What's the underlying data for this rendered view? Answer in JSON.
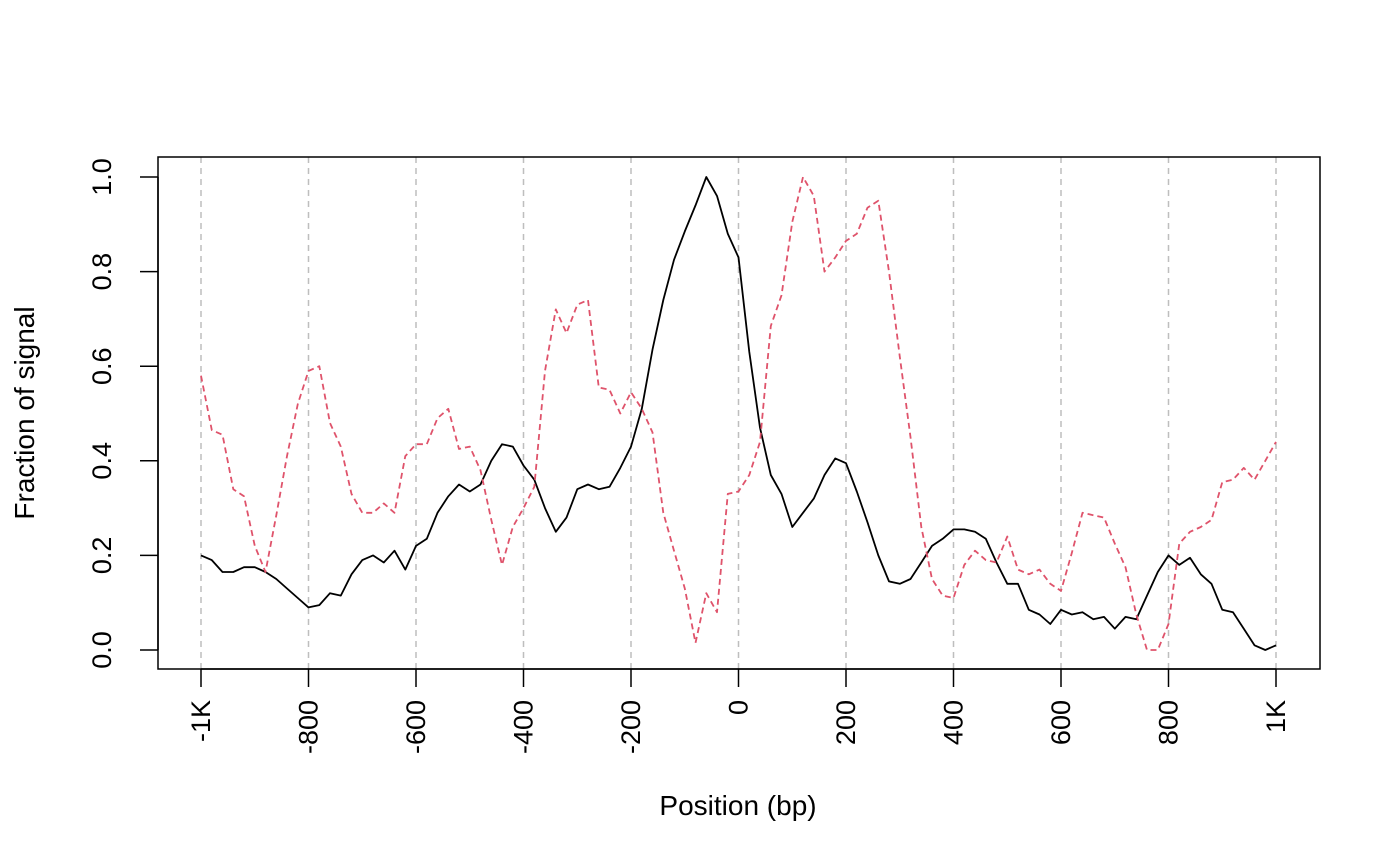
{
  "chart_data": {
    "type": "line",
    "xlabel": "Position (bp)",
    "ylabel": "Fraction of signal",
    "xlim": [
      -1000,
      1000
    ],
    "ylim": [
      0,
      1
    ],
    "x_ticks": [
      -1000,
      -800,
      -600,
      -400,
      -200,
      0,
      200,
      400,
      600,
      800,
      1000
    ],
    "x_tick_labels": [
      "-1K",
      "-800",
      "-600",
      "-400",
      "-200",
      "0",
      "200",
      "400",
      "600",
      "800",
      "1K"
    ],
    "y_ticks": [
      0,
      0.2,
      0.4,
      0.6,
      0.8,
      1
    ],
    "y_tick_labels": [
      "0.0",
      "0.2",
      "0.4",
      "0.6",
      "0.8",
      "1.0"
    ],
    "grid": "vertical dashed at x ticks",
    "legend": "none",
    "colors": {
      "grid": "#bebebe"
    },
    "series": [
      {
        "color": "#000000",
        "dash": "solid",
        "x": [
          -1000,
          -980,
          -960,
          -940,
          -920,
          -900,
          -880,
          -860,
          -840,
          -820,
          -800,
          -780,
          -760,
          -740,
          -720,
          -700,
          -680,
          -660,
          -640,
          -620,
          -600,
          -580,
          -560,
          -540,
          -520,
          -500,
          -480,
          -460,
          -440,
          -420,
          -400,
          -380,
          -360,
          -340,
          -320,
          -300,
          -280,
          -260,
          -240,
          -220,
          -200,
          -180,
          -160,
          -140,
          -120,
          -100,
          -80,
          -60,
          -40,
          -20,
          0,
          20,
          40,
          60,
          80,
          100,
          120,
          140,
          160,
          180,
          200,
          220,
          240,
          260,
          280,
          300,
          320,
          340,
          360,
          380,
          400,
          420,
          440,
          460,
          480,
          500,
          520,
          540,
          560,
          580,
          600,
          620,
          640,
          660,
          680,
          700,
          720,
          740,
          760,
          780,
          800,
          820,
          840,
          860,
          880,
          900,
          920,
          940,
          960,
          980,
          1000
        ],
        "y": [
          0.2,
          0.19,
          0.165,
          0.165,
          0.175,
          0.175,
          0.165,
          0.15,
          0.13,
          0.11,
          0.09,
          0.095,
          0.12,
          0.115,
          0.16,
          0.19,
          0.2,
          0.185,
          0.21,
          0.17,
          0.22,
          0.235,
          0.29,
          0.325,
          0.35,
          0.335,
          0.35,
          0.4,
          0.435,
          0.43,
          0.39,
          0.36,
          0.3,
          0.25,
          0.28,
          0.34,
          0.35,
          0.34,
          0.345,
          0.385,
          0.43,
          0.51,
          0.635,
          0.74,
          0.825,
          0.885,
          0.94,
          1.0,
          0.96,
          0.88,
          0.83,
          0.63,
          0.47,
          0.37,
          0.33,
          0.26,
          0.29,
          0.32,
          0.37,
          0.405,
          0.395,
          0.335,
          0.27,
          0.2,
          0.145,
          0.14,
          0.15,
          0.185,
          0.22,
          0.235,
          0.255,
          0.255,
          0.25,
          0.235,
          0.185,
          0.14,
          0.14,
          0.085,
          0.075,
          0.055,
          0.085,
          0.075,
          0.08,
          0.065,
          0.07,
          0.045,
          0.07,
          0.065,
          0.115,
          0.165,
          0.2,
          0.18,
          0.195,
          0.16,
          0.14,
          0.085,
          0.08,
          0.045,
          0.01,
          0.0,
          0.01
        ]
      },
      {
        "color": "#df536b",
        "dash": "dashed",
        "x": [
          -1000,
          -980,
          -960,
          -940,
          -920,
          -900,
          -880,
          -860,
          -840,
          -820,
          -800,
          -780,
          -760,
          -740,
          -720,
          -700,
          -680,
          -660,
          -640,
          -620,
          -600,
          -580,
          -560,
          -540,
          -520,
          -500,
          -480,
          -460,
          -440,
          -420,
          -400,
          -380,
          -360,
          -340,
          -320,
          -300,
          -280,
          -260,
          -240,
          -220,
          -200,
          -180,
          -160,
          -140,
          -120,
          -100,
          -80,
          -60,
          -40,
          -20,
          0,
          20,
          40,
          60,
          80,
          100,
          120,
          140,
          160,
          180,
          200,
          220,
          240,
          260,
          280,
          300,
          320,
          340,
          360,
          380,
          400,
          420,
          440,
          460,
          480,
          500,
          520,
          540,
          560,
          580,
          600,
          620,
          640,
          660,
          680,
          700,
          720,
          740,
          760,
          780,
          800,
          820,
          840,
          860,
          880,
          900,
          920,
          940,
          960,
          980,
          1000
        ],
        "y": [
          0.58,
          0.465,
          0.455,
          0.34,
          0.325,
          0.22,
          0.165,
          0.285,
          0.41,
          0.52,
          0.59,
          0.6,
          0.48,
          0.43,
          0.33,
          0.29,
          0.29,
          0.31,
          0.29,
          0.41,
          0.435,
          0.435,
          0.49,
          0.51,
          0.425,
          0.43,
          0.38,
          0.275,
          0.18,
          0.26,
          0.3,
          0.345,
          0.59,
          0.72,
          0.67,
          0.73,
          0.74,
          0.555,
          0.55,
          0.5,
          0.545,
          0.51,
          0.46,
          0.29,
          0.21,
          0.13,
          0.015,
          0.12,
          0.08,
          0.33,
          0.335,
          0.37,
          0.44,
          0.685,
          0.75,
          0.905,
          1.0,
          0.96,
          0.8,
          0.83,
          0.865,
          0.88,
          0.935,
          0.95,
          0.8,
          0.62,
          0.45,
          0.26,
          0.15,
          0.115,
          0.11,
          0.18,
          0.21,
          0.19,
          0.185,
          0.24,
          0.17,
          0.16,
          0.17,
          0.14,
          0.125,
          0.205,
          0.29,
          0.285,
          0.28,
          0.225,
          0.175,
          0.075,
          0.0,
          0.0,
          0.055,
          0.225,
          0.25,
          0.26,
          0.275,
          0.355,
          0.36,
          0.385,
          0.36,
          0.4,
          0.44
        ]
      }
    ]
  }
}
